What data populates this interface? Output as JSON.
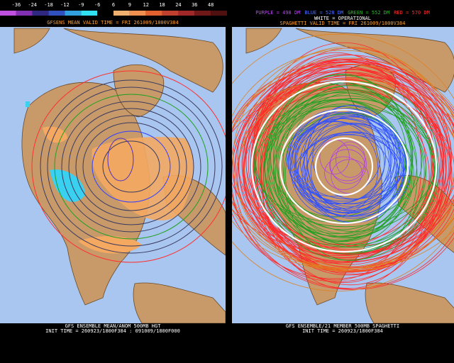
{
  "colorbar": {
    "labels": [
      "-36",
      "-24",
      "-18",
      "-12",
      "-9",
      "-6",
      "6",
      "9",
      "12",
      "18",
      "24",
      "36",
      "48"
    ]
  },
  "left_panel": {
    "header": "GFSENS MEAN VALID TIME = FRI 261009/1800V384",
    "footer": [
      "GFS ENSEMBLE MEAN/ANOM 500MB HGT",
      "INIT TIME = 260923/1800F384 : 091009/1800F000"
    ]
  },
  "right_panel": {
    "legend": [
      {
        "text": "PURPLE = 498 DM",
        "color": "#c040ff"
      },
      {
        "text": "BLUE = 528 DM",
        "color": "#4a6cff"
      },
      {
        "text": "GREEN = 552 DM",
        "color": "#20c020"
      },
      {
        "text": "RED = 570 DM",
        "color": "#ff3030"
      }
    ],
    "legend_line2": "WHITE = OPERATIONAL",
    "header": "SPAGHETTI VALID TIME = FRI 261009/1800V384",
    "footer": [
      "GFS ENSEMBLE/21 MEMBER 500MB SPAGHETTI",
      "INIT TIME = 260923/1800F384"
    ]
  }
}
